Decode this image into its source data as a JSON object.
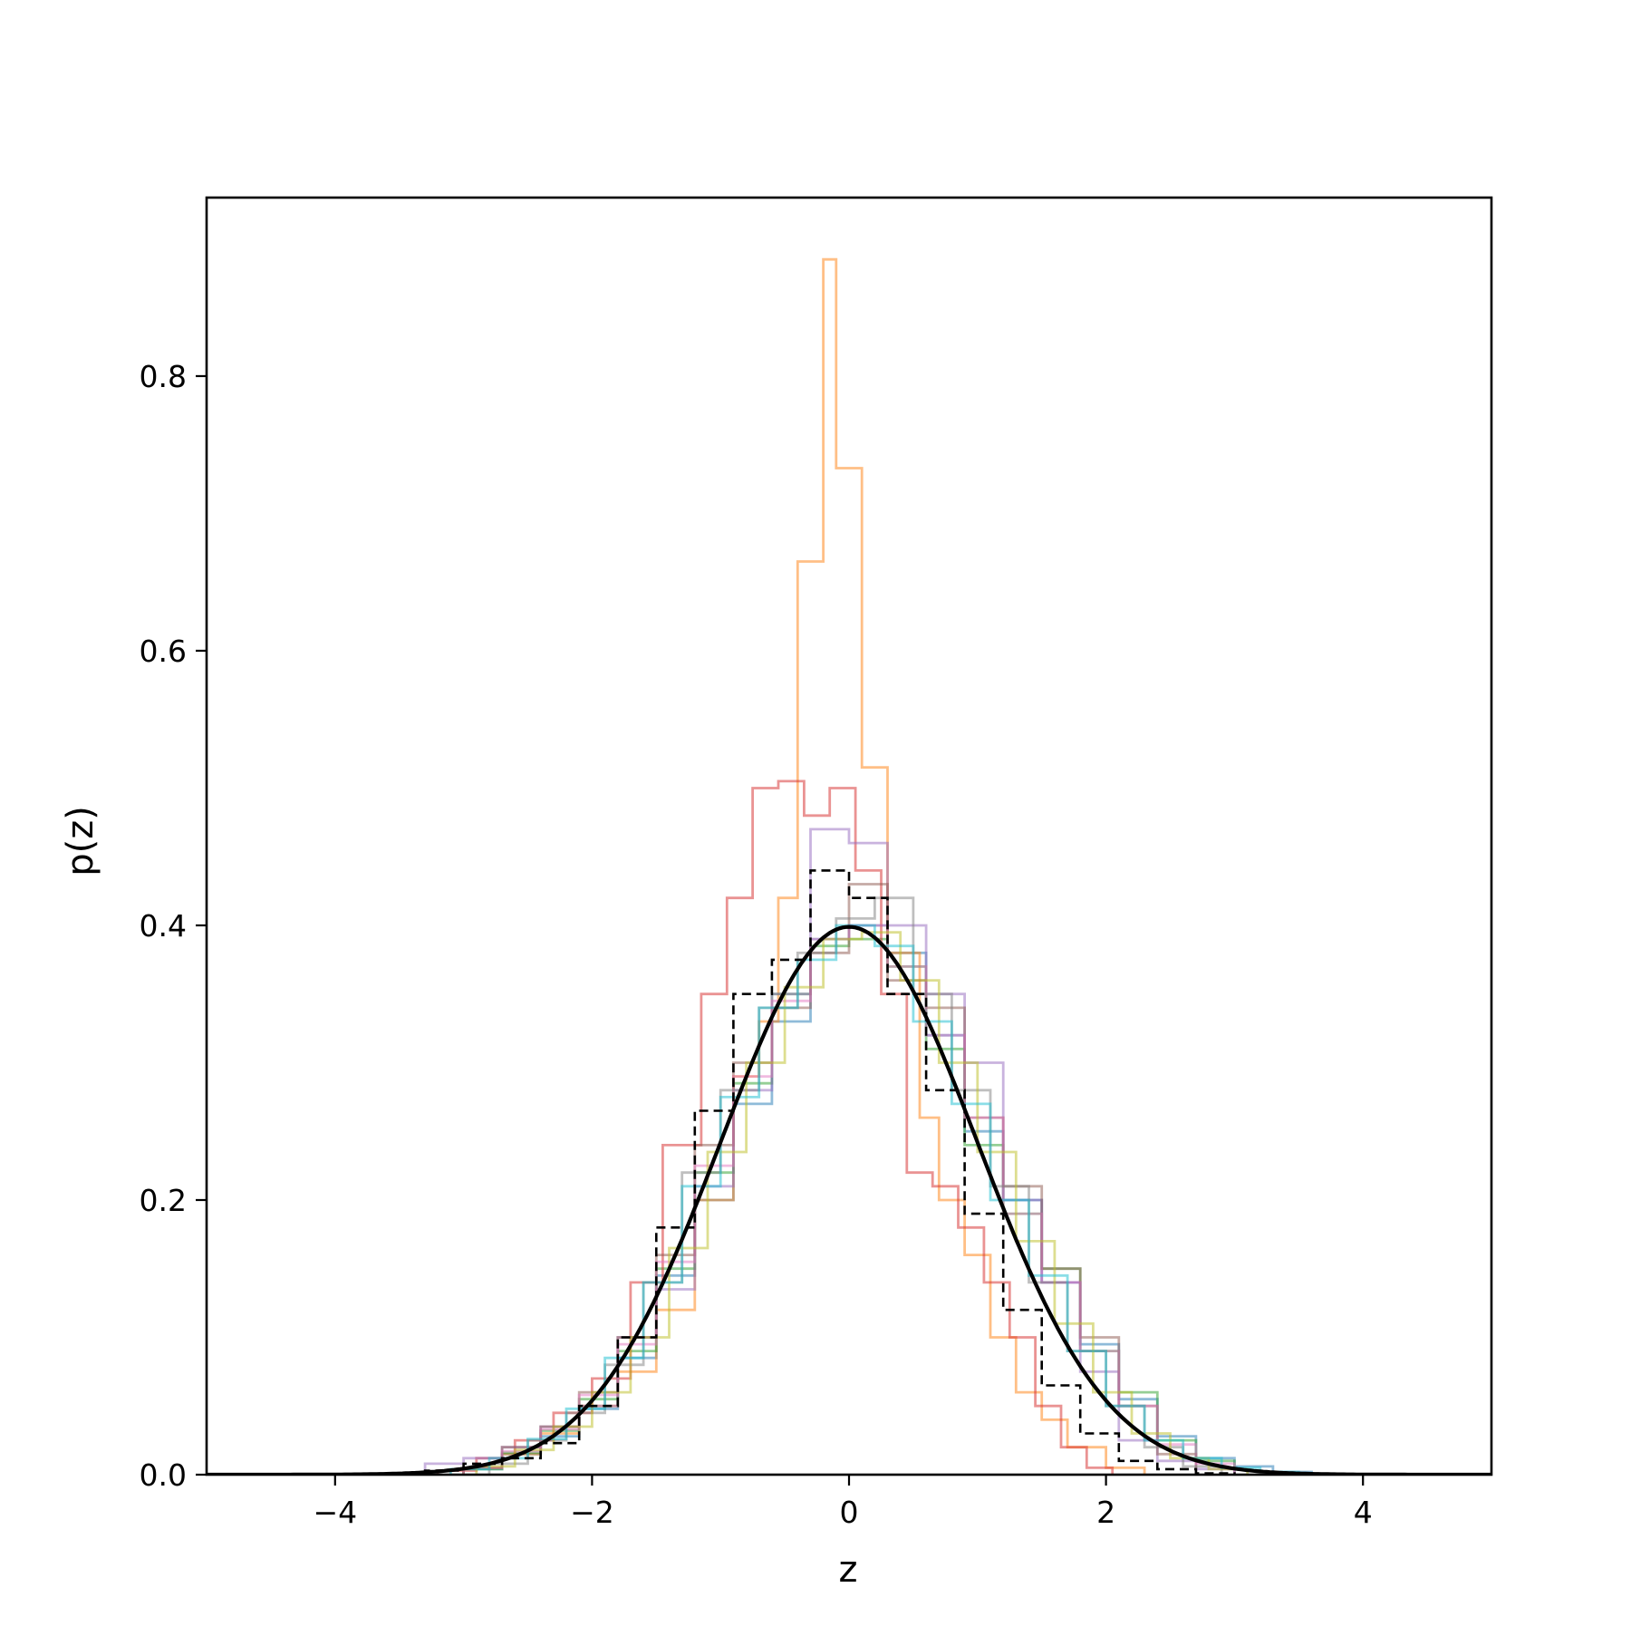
{
  "chart_data": {
    "type": "line",
    "title": "",
    "xlabel": "z",
    "ylabel": "p(z)",
    "xlim": [
      -5,
      5
    ],
    "ylim": [
      0,
      0.93
    ],
    "grid": false,
    "legend": "none",
    "x_ticks": [
      -4,
      -2,
      0,
      2,
      4
    ],
    "x_tick_labels": [
      "−4",
      "−2",
      "0",
      "2",
      "4"
    ],
    "y_ticks": [
      0.0,
      0.2,
      0.4,
      0.6,
      0.8
    ],
    "y_tick_labels": [
      "0.0",
      "0.2",
      "0.4",
      "0.6",
      "0.8"
    ],
    "reference_curve": {
      "kind": "standard normal pdf",
      "mean": 0,
      "std": 1,
      "color": "#000000",
      "line": "solid"
    },
    "series": [
      {
        "color": "#1f77b4",
        "line": "step",
        "edges": [
          -3.0,
          -2.7,
          -2.4,
          -2.1,
          -1.8,
          -1.5,
          -1.2,
          -0.9,
          -0.6,
          -0.3,
          0.0,
          0.3,
          0.6,
          0.9,
          1.2,
          1.5,
          1.8,
          2.1,
          2.4,
          2.7,
          3.0,
          3.3,
          3.6
        ],
        "density": [
          0.004,
          0.015,
          0.028,
          0.048,
          0.085,
          0.145,
          0.2,
          0.27,
          0.33,
          0.39,
          0.4,
          0.38,
          0.32,
          0.25,
          0.2,
          0.14,
          0.095,
          0.055,
          0.028,
          0.012,
          0.006,
          0.002
        ]
      },
      {
        "color": "#ff7f0e",
        "line": "step",
        "edges": [
          -3.0,
          -2.7,
          -2.4,
          -2.1,
          -1.8,
          -1.5,
          -1.2,
          -0.9,
          -0.7,
          -0.55,
          -0.4,
          -0.2,
          -0.1,
          0.1,
          0.3,
          0.55,
          0.7,
          0.9,
          1.1,
          1.3,
          1.5,
          1.7,
          2.0,
          2.3
        ],
        "density": [
          0.005,
          0.015,
          0.03,
          0.05,
          0.075,
          0.12,
          0.2,
          0.29,
          0.33,
          0.42,
          0.665,
          0.885,
          0.733,
          0.515,
          0.38,
          0.26,
          0.2,
          0.16,
          0.1,
          0.06,
          0.04,
          0.02,
          0.005
        ]
      },
      {
        "color": "#2ca02c",
        "line": "step",
        "edges": [
          -3.0,
          -2.7,
          -2.4,
          -2.1,
          -1.8,
          -1.5,
          -1.2,
          -0.9,
          -0.6,
          -0.3,
          0.0,
          0.3,
          0.6,
          0.9,
          1.2,
          1.5,
          1.8,
          2.1,
          2.4,
          2.7,
          3.0
        ],
        "density": [
          0.004,
          0.016,
          0.032,
          0.055,
          0.09,
          0.15,
          0.22,
          0.285,
          0.35,
          0.385,
          0.39,
          0.37,
          0.31,
          0.24,
          0.19,
          0.15,
          0.09,
          0.06,
          0.025,
          0.01
        ]
      },
      {
        "color": "#d62728",
        "line": "step",
        "edges": [
          -3.2,
          -2.9,
          -2.6,
          -2.3,
          -2.0,
          -1.7,
          -1.45,
          -1.15,
          -0.95,
          -0.75,
          -0.55,
          -0.35,
          -0.15,
          0.05,
          0.25,
          0.45,
          0.65,
          0.85,
          1.05,
          1.25,
          1.45,
          1.65,
          1.85,
          2.05
        ],
        "density": [
          0.003,
          0.012,
          0.025,
          0.045,
          0.07,
          0.14,
          0.24,
          0.35,
          0.42,
          0.5,
          0.505,
          0.48,
          0.5,
          0.44,
          0.35,
          0.22,
          0.21,
          0.18,
          0.14,
          0.1,
          0.05,
          0.02,
          0.005
        ]
      },
      {
        "color": "#9467bd",
        "line": "step",
        "edges": [
          -3.3,
          -3.0,
          -2.7,
          -2.4,
          -2.1,
          -1.8,
          -1.5,
          -1.2,
          -0.9,
          -0.6,
          -0.3,
          0.0,
          0.3,
          0.6,
          0.9,
          1.2,
          1.5,
          1.8,
          2.1,
          2.4,
          2.7,
          3.0
        ],
        "density": [
          0.008,
          0.012,
          0.02,
          0.035,
          0.05,
          0.1,
          0.135,
          0.21,
          0.28,
          0.35,
          0.47,
          0.46,
          0.4,
          0.35,
          0.3,
          0.2,
          0.14,
          0.075,
          0.025,
          0.01,
          0.004
        ]
      },
      {
        "color": "#8c564b",
        "line": "step",
        "edges": [
          -3.0,
          -2.7,
          -2.4,
          -2.1,
          -1.8,
          -1.5,
          -1.2,
          -0.9,
          -0.6,
          -0.3,
          0.0,
          0.3,
          0.6,
          0.9,
          1.2,
          1.5,
          1.8,
          2.1,
          2.4,
          2.7
        ],
        "density": [
          0.005,
          0.02,
          0.035,
          0.06,
          0.1,
          0.16,
          0.24,
          0.3,
          0.34,
          0.38,
          0.43,
          0.36,
          0.34,
          0.26,
          0.21,
          0.15,
          0.1,
          0.05,
          0.015
        ]
      },
      {
        "color": "#e377c2",
        "line": "step",
        "edges": [
          -3.0,
          -2.7,
          -2.4,
          -2.1,
          -1.8,
          -1.5,
          -1.2,
          -0.9,
          -0.6,
          -0.3,
          0.0,
          0.3,
          0.6,
          0.9,
          1.2,
          1.5,
          1.8,
          2.1,
          2.4,
          2.7,
          3.0
        ],
        "density": [
          0.005,
          0.017,
          0.033,
          0.058,
          0.095,
          0.155,
          0.225,
          0.29,
          0.345,
          0.39,
          0.4,
          0.37,
          0.32,
          0.26,
          0.19,
          0.14,
          0.09,
          0.05,
          0.022,
          0.008
        ]
      },
      {
        "color": "#7f7f7f",
        "line": "step",
        "edges": [
          -2.8,
          -2.5,
          -2.2,
          -1.9,
          -1.6,
          -1.3,
          -1.0,
          -0.7,
          -0.4,
          -0.1,
          0.2,
          0.5,
          0.8,
          1.1,
          1.4,
          1.7,
          2.0,
          2.3,
          2.6,
          2.9
        ],
        "density": [
          0.008,
          0.025,
          0.045,
          0.08,
          0.14,
          0.22,
          0.28,
          0.34,
          0.38,
          0.405,
          0.42,
          0.35,
          0.28,
          0.21,
          0.14,
          0.09,
          0.05,
          0.02,
          0.006
        ]
      },
      {
        "color": "#bcbd22",
        "line": "step",
        "edges": [
          -2.9,
          -2.6,
          -2.3,
          -2.0,
          -1.7,
          -1.4,
          -1.1,
          -0.8,
          -0.5,
          -0.2,
          0.1,
          0.4,
          0.7,
          1.0,
          1.3,
          1.6,
          1.9,
          2.2,
          2.5,
          2.8,
          3.1
        ],
        "density": [
          0.006,
          0.018,
          0.035,
          0.06,
          0.1,
          0.165,
          0.235,
          0.3,
          0.355,
          0.39,
          0.395,
          0.36,
          0.3,
          0.235,
          0.17,
          0.11,
          0.06,
          0.03,
          0.012,
          0.004
        ]
      },
      {
        "color": "#17becf",
        "line": "step",
        "edges": [
          -3.1,
          -2.8,
          -2.5,
          -2.2,
          -1.9,
          -1.6,
          -1.3,
          -1.0,
          -0.7,
          -0.4,
          -0.1,
          0.2,
          0.5,
          0.8,
          1.1,
          1.4,
          1.7,
          2.0,
          2.3,
          2.6,
          2.9,
          3.2,
          3.5
        ],
        "density": [
          0.004,
          0.012,
          0.026,
          0.048,
          0.085,
          0.14,
          0.21,
          0.275,
          0.34,
          0.375,
          0.4,
          0.385,
          0.33,
          0.27,
          0.2,
          0.145,
          0.09,
          0.05,
          0.025,
          0.012,
          0.005,
          0.002
        ]
      },
      {
        "color": "#000000",
        "line": "dashed-step",
        "edges": [
          -3.3,
          -3.0,
          -2.7,
          -2.4,
          -2.1,
          -1.8,
          -1.5,
          -1.2,
          -0.9,
          -0.6,
          -0.3,
          0.0,
          0.3,
          0.6,
          0.9,
          1.2,
          1.5,
          1.8,
          2.1,
          2.4,
          2.7,
          3.0
        ],
        "density": [
          0.003,
          0.008,
          0.012,
          0.023,
          0.05,
          0.1,
          0.18,
          0.265,
          0.35,
          0.375,
          0.44,
          0.42,
          0.35,
          0.28,
          0.19,
          0.12,
          0.065,
          0.03,
          0.01,
          0.004,
          0.001
        ]
      }
    ]
  }
}
